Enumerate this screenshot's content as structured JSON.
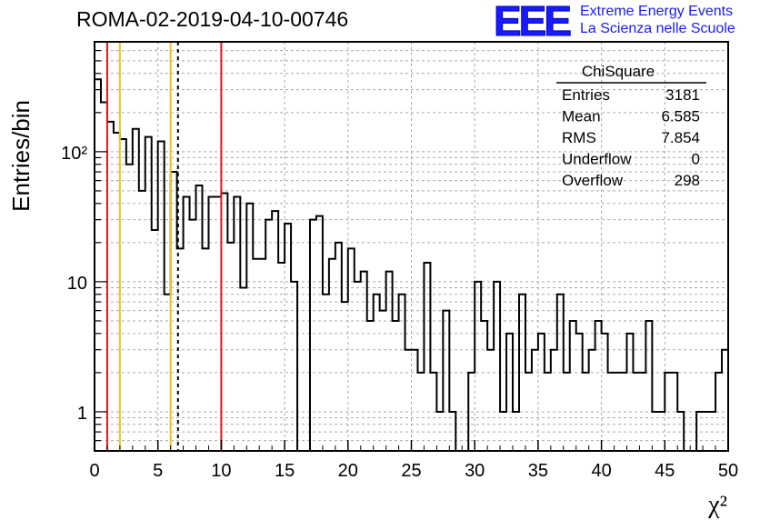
{
  "header": {
    "run_title": "ROMA-02-2019-04-10-00746",
    "logo_text": "EEE",
    "org_line1": "Extreme Energy Events",
    "org_line2": "La Scienza nelle Scuole",
    "brand_color": "#1a1aff"
  },
  "stats_box": {
    "title": "ChiSquare",
    "rows": [
      {
        "label": "Entries",
        "value": "3181"
      },
      {
        "label": "Mean",
        "value": "6.585"
      },
      {
        "label": "RMS",
        "value": "7.854"
      },
      {
        "label": "Underflow",
        "value": "0"
      },
      {
        "label": "Overflow",
        "value": "298"
      }
    ]
  },
  "chart_data": {
    "type": "histogram",
    "title": "ROMA-02-2019-04-10-00746",
    "xlabel": "χ²",
    "ylabel": "Entries/bin",
    "xlim": [
      0,
      50
    ],
    "ylim": [
      0.5,
      700
    ],
    "yscale": "log",
    "grid": true,
    "bin_width": 0.5,
    "x_ticks": [
      0,
      5,
      10,
      15,
      20,
      25,
      30,
      35,
      40,
      45,
      50
    ],
    "y_ticks": [
      {
        "value": 1,
        "label": "1"
      },
      {
        "value": 10,
        "label": "10"
      },
      {
        "value": 100,
        "label": "10²"
      }
    ],
    "counts": [
      360,
      240,
      170,
      140,
      125,
      80,
      150,
      50,
      130,
      25,
      120,
      8,
      70,
      18,
      45,
      30,
      55,
      18,
      45,
      45,
      48,
      20,
      45,
      9,
      40,
      15,
      15,
      30,
      35,
      14,
      28,
      10,
      0,
      0,
      30,
      32,
      8,
      15,
      20,
      7,
      18,
      10,
      12,
      5,
      8,
      6,
      12,
      5,
      8,
      3,
      3,
      2,
      14,
      2,
      1,
      6,
      1,
      0,
      0,
      2,
      10,
      5,
      3,
      10,
      1,
      4,
      1,
      8,
      2,
      3,
      4,
      2,
      3,
      8,
      2,
      5,
      4,
      2,
      3,
      5,
      4,
      2,
      2,
      2,
      4,
      2,
      2,
      5,
      1,
      1,
      2,
      2,
      1,
      0,
      0,
      1,
      1,
      1,
      2,
      3
    ],
    "vertical_lines": [
      {
        "x": 1,
        "color": "#e8141c",
        "style": "solid"
      },
      {
        "x": 2,
        "color": "#f2c21b",
        "style": "solid"
      },
      {
        "x": 6,
        "color": "#f2c21b",
        "style": "solid"
      },
      {
        "x": 6.585,
        "color": "#000000",
        "style": "dashed"
      },
      {
        "x": 10,
        "color": "#e8141c",
        "style": "solid"
      }
    ]
  }
}
